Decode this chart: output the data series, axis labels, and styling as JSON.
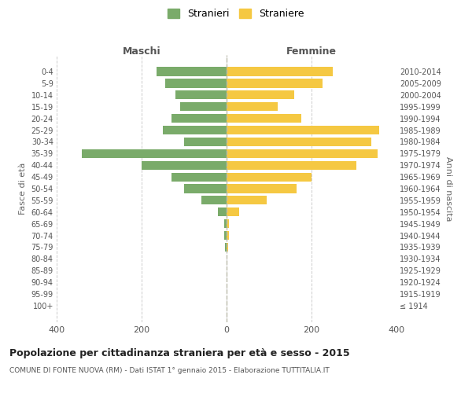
{
  "age_groups": [
    "100+",
    "95-99",
    "90-94",
    "85-89",
    "80-84",
    "75-79",
    "70-74",
    "65-69",
    "60-64",
    "55-59",
    "50-54",
    "45-49",
    "40-44",
    "35-39",
    "30-34",
    "25-29",
    "20-24",
    "15-19",
    "10-14",
    "5-9",
    "0-4"
  ],
  "birth_years": [
    "≤ 1914",
    "1915-1919",
    "1920-1924",
    "1925-1929",
    "1930-1934",
    "1935-1939",
    "1940-1944",
    "1945-1949",
    "1950-1954",
    "1955-1959",
    "1960-1964",
    "1965-1969",
    "1970-1974",
    "1975-1979",
    "1980-1984",
    "1985-1989",
    "1990-1994",
    "1995-1999",
    "2000-2004",
    "2005-2009",
    "2010-2014"
  ],
  "maschi": [
    0,
    0,
    0,
    0,
    0,
    3,
    5,
    5,
    20,
    60,
    100,
    130,
    200,
    340,
    100,
    150,
    130,
    110,
    120,
    145,
    165
  ],
  "femmine": [
    0,
    0,
    0,
    0,
    0,
    3,
    5,
    5,
    30,
    95,
    165,
    200,
    305,
    355,
    340,
    360,
    175,
    120,
    160,
    225,
    250
  ],
  "color_maschi": "#7aab6a",
  "color_femmine": "#f5c842",
  "title": "Popolazione per cittadinanza straniera per età e sesso - 2015",
  "subtitle": "COMUNE DI FONTE NUOVA (RM) - Dati ISTAT 1° gennaio 2015 - Elaborazione TUTTITALIA.IT",
  "xlabel_maschi": "Maschi",
  "xlabel_femmine": "Femmine",
  "ylabel_left": "Fasce di età",
  "ylabel_right": "Anni di nascita",
  "legend_maschi": "Stranieri",
  "legend_femmine": "Straniere",
  "xlim": 400,
  "bg_color": "#ffffff",
  "grid_color": "#cccccc"
}
